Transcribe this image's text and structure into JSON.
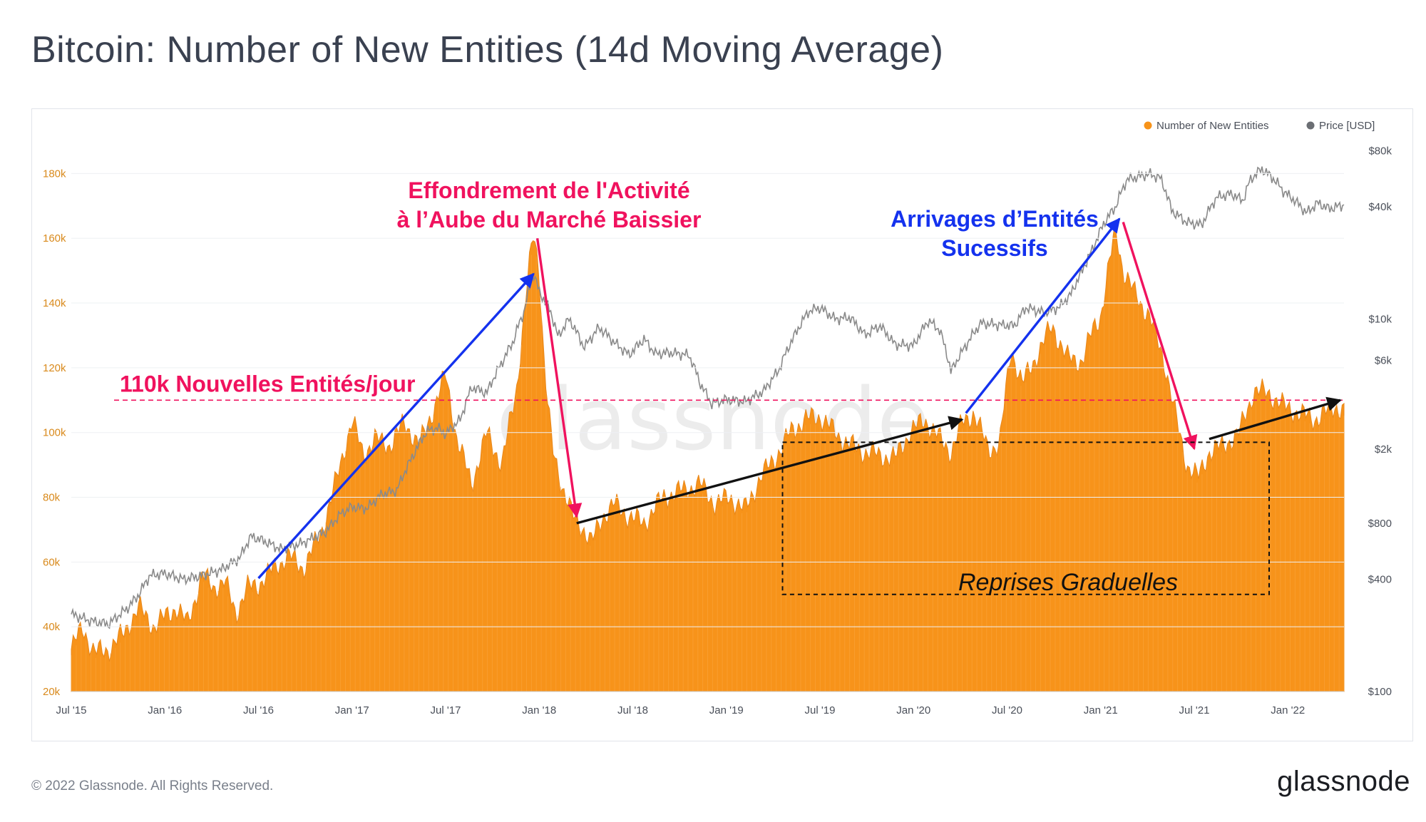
{
  "title": "Bitcoin: Number of New Entities (14d Moving Average)",
  "footer": "© 2022 Glassnode. All Rights Reserved.",
  "brand": "glassnode",
  "watermark": "glassnode",
  "colors": {
    "entities": "#f7931a",
    "price": "#8a8a8a",
    "red": "#f0125e",
    "blue": "#1432ee",
    "black": "#111111"
  },
  "chart_data": {
    "type": "area",
    "title": "Bitcoin: Number of New Entities (14d Moving Average)",
    "legend": {
      "position": "top-right",
      "items": [
        "Number of New Entities",
        "Price [USD]"
      ]
    },
    "x_range": [
      2015.5,
      2022.3
    ],
    "x_ticks": [
      {
        "label": "Jul '15",
        "t": 2015.5
      },
      {
        "label": "Jan '16",
        "t": 2016.0
      },
      {
        "label": "Jul '16",
        "t": 2016.5
      },
      {
        "label": "Jan '17",
        "t": 2017.0
      },
      {
        "label": "Jul '17",
        "t": 2017.5
      },
      {
        "label": "Jan '18",
        "t": 2018.0
      },
      {
        "label": "Jul '18",
        "t": 2018.5
      },
      {
        "label": "Jan '19",
        "t": 2019.0
      },
      {
        "label": "Jul '19",
        "t": 2019.5
      },
      {
        "label": "Jan '20",
        "t": 2020.0
      },
      {
        "label": "Jul '20",
        "t": 2020.5
      },
      {
        "label": "Jan '21",
        "t": 2021.0
      },
      {
        "label": "Jul '21",
        "t": 2021.5
      },
      {
        "label": "Jan '22",
        "t": 2022.0
      }
    ],
    "y_left": {
      "range": [
        20000,
        190000
      ],
      "ticks": [
        {
          "label": "20k",
          "v": 20000
        },
        {
          "label": "40k",
          "v": 40000
        },
        {
          "label": "60k",
          "v": 60000
        },
        {
          "label": "80k",
          "v": 80000
        },
        {
          "label": "100k",
          "v": 100000
        },
        {
          "label": "120k",
          "v": 120000
        },
        {
          "label": "140k",
          "v": 140000
        },
        {
          "label": "160k",
          "v": 160000
        },
        {
          "label": "180k",
          "v": 180000
        }
      ]
    },
    "y_right": {
      "scale": "log",
      "range": [
        100,
        90000
      ],
      "ticks": [
        {
          "label": "$100",
          "v": 100
        },
        {
          "label": "$400",
          "v": 400
        },
        {
          "label": "$800",
          "v": 800
        },
        {
          "label": "$2k",
          "v": 2000
        },
        {
          "label": "$6k",
          "v": 6000
        },
        {
          "label": "$10k",
          "v": 10000
        },
        {
          "label": "$40k",
          "v": 40000
        },
        {
          "label": "$80k",
          "v": 80000
        }
      ]
    },
    "series": [
      {
        "name": "Number of New Entities",
        "axis": "left",
        "style": "area",
        "points": [
          [
            2015.5,
            33000
          ],
          [
            2015.56,
            40000
          ],
          [
            2015.62,
            32000
          ],
          [
            2015.7,
            33000
          ],
          [
            2015.78,
            38000
          ],
          [
            2015.86,
            46000
          ],
          [
            2015.94,
            40000
          ],
          [
            2016.0,
            43000
          ],
          [
            2016.06,
            46000
          ],
          [
            2016.12,
            41000
          ],
          [
            2016.2,
            56000
          ],
          [
            2016.26,
            52000
          ],
          [
            2016.32,
            54000
          ],
          [
            2016.38,
            44000
          ],
          [
            2016.44,
            52000
          ],
          [
            2016.5,
            53000
          ],
          [
            2016.58,
            58000
          ],
          [
            2016.66,
            62000
          ],
          [
            2016.74,
            58000
          ],
          [
            2016.84,
            70000
          ],
          [
            2016.92,
            86000
          ],
          [
            2017.0,
            104000
          ],
          [
            2017.06,
            93000
          ],
          [
            2017.12,
            98000
          ],
          [
            2017.2,
            96000
          ],
          [
            2017.28,
            103000
          ],
          [
            2017.36,
            96000
          ],
          [
            2017.44,
            108000
          ],
          [
            2017.5,
            118000
          ],
          [
            2017.56,
            98000
          ],
          [
            2017.64,
            84000
          ],
          [
            2017.72,
            100000
          ],
          [
            2017.8,
            90000
          ],
          [
            2017.88,
            114000
          ],
          [
            2017.94,
            148000
          ],
          [
            2017.97,
            162000
          ],
          [
            2018.0,
            150000
          ],
          [
            2018.03,
            118000
          ],
          [
            2018.07,
            95000
          ],
          [
            2018.12,
            84000
          ],
          [
            2018.18,
            74000
          ],
          [
            2018.24,
            70000
          ],
          [
            2018.28,
            66000
          ],
          [
            2018.34,
            74000
          ],
          [
            2018.4,
            78000
          ],
          [
            2018.48,
            74000
          ],
          [
            2018.56,
            72000
          ],
          [
            2018.66,
            80000
          ],
          [
            2018.76,
            82000
          ],
          [
            2018.86,
            84000
          ],
          [
            2018.94,
            78000
          ],
          [
            2019.02,
            80000
          ],
          [
            2019.1,
            76000
          ],
          [
            2019.18,
            86000
          ],
          [
            2019.26,
            92000
          ],
          [
            2019.34,
            100000
          ],
          [
            2019.42,
            104000
          ],
          [
            2019.5,
            105000
          ],
          [
            2019.58,
            100000
          ],
          [
            2019.66,
            96000
          ],
          [
            2019.74,
            94000
          ],
          [
            2019.82,
            93000
          ],
          [
            2019.9,
            92000
          ],
          [
            2019.98,
            100000
          ],
          [
            2020.06,
            104000
          ],
          [
            2020.14,
            98000
          ],
          [
            2020.2,
            94000
          ],
          [
            2020.26,
            103000
          ],
          [
            2020.32,
            106000
          ],
          [
            2020.4,
            95000
          ],
          [
            2020.46,
            96000
          ],
          [
            2020.52,
            126000
          ],
          [
            2020.58,
            115000
          ],
          [
            2020.66,
            124000
          ],
          [
            2020.74,
            133000
          ],
          [
            2020.82,
            123000
          ],
          [
            2020.9,
            122000
          ],
          [
            2020.96,
            132000
          ],
          [
            2021.0,
            136000
          ],
          [
            2021.04,
            150000
          ],
          [
            2021.08,
            163000
          ],
          [
            2021.12,
            150000
          ],
          [
            2021.18,
            143000
          ],
          [
            2021.26,
            136000
          ],
          [
            2021.34,
            122000
          ],
          [
            2021.4,
            105000
          ],
          [
            2021.46,
            90000
          ],
          [
            2021.52,
            86000
          ],
          [
            2021.58,
            94000
          ],
          [
            2021.66,
            96000
          ],
          [
            2021.74,
            100000
          ],
          [
            2021.82,
            113000
          ],
          [
            2021.9,
            112000
          ],
          [
            2021.98,
            108000
          ],
          [
            2022.06,
            106000
          ],
          [
            2022.14,
            104000
          ],
          [
            2022.2,
            106000
          ],
          [
            2022.26,
            108000
          ],
          [
            2022.3,
            107000
          ]
        ]
      },
      {
        "name": "Price [USD]",
        "axis": "right",
        "style": "line",
        "points": [
          [
            2015.5,
            260
          ],
          [
            2015.6,
            240
          ],
          [
            2015.7,
            230
          ],
          [
            2015.8,
            280
          ],
          [
            2015.86,
            330
          ],
          [
            2015.92,
            420
          ],
          [
            2016.0,
            430
          ],
          [
            2016.1,
            400
          ],
          [
            2016.2,
            420
          ],
          [
            2016.3,
            450
          ],
          [
            2016.4,
            520
          ],
          [
            2016.46,
            680
          ],
          [
            2016.52,
            650
          ],
          [
            2016.62,
            580
          ],
          [
            2016.74,
            630
          ],
          [
            2016.86,
            720
          ],
          [
            2016.94,
            900
          ],
          [
            2017.0,
            980
          ],
          [
            2017.08,
            960
          ],
          [
            2017.16,
            1150
          ],
          [
            2017.24,
            1200
          ],
          [
            2017.32,
            1800
          ],
          [
            2017.4,
            2500
          ],
          [
            2017.46,
            2600
          ],
          [
            2017.5,
            2400
          ],
          [
            2017.58,
            2900
          ],
          [
            2017.64,
            4300
          ],
          [
            2017.72,
            4000
          ],
          [
            2017.8,
            5800
          ],
          [
            2017.86,
            7500
          ],
          [
            2017.92,
            11000
          ],
          [
            2017.97,
            17500
          ],
          [
            2018.0,
            14000
          ],
          [
            2018.06,
            11000
          ],
          [
            2018.1,
            8000
          ],
          [
            2018.16,
            10000
          ],
          [
            2018.24,
            7000
          ],
          [
            2018.32,
            9000
          ],
          [
            2018.4,
            7500
          ],
          [
            2018.48,
            6400
          ],
          [
            2018.56,
            7800
          ],
          [
            2018.62,
            6500
          ],
          [
            2018.7,
            6600
          ],
          [
            2018.8,
            6400
          ],
          [
            2018.86,
            4500
          ],
          [
            2018.92,
            3500
          ],
          [
            2019.0,
            3700
          ],
          [
            2019.1,
            3600
          ],
          [
            2019.2,
            4100
          ],
          [
            2019.28,
            5300
          ],
          [
            2019.36,
            8000
          ],
          [
            2019.44,
            11000
          ],
          [
            2019.5,
            11500
          ],
          [
            2019.58,
            10000
          ],
          [
            2019.66,
            10200
          ],
          [
            2019.74,
            8200
          ],
          [
            2019.82,
            9200
          ],
          [
            2019.9,
            7300
          ],
          [
            2020.0,
            7200
          ],
          [
            2020.08,
            9800
          ],
          [
            2020.14,
            8700
          ],
          [
            2020.2,
            5200
          ],
          [
            2020.28,
            7200
          ],
          [
            2020.36,
            9500
          ],
          [
            2020.46,
            9300
          ],
          [
            2020.54,
            9200
          ],
          [
            2020.6,
            11500
          ],
          [
            2020.7,
            10800
          ],
          [
            2020.78,
            11600
          ],
          [
            2020.84,
            13500
          ],
          [
            2020.9,
            18000
          ],
          [
            2020.96,
            24000
          ],
          [
            2021.02,
            33000
          ],
          [
            2021.08,
            40000
          ],
          [
            2021.14,
            56000
          ],
          [
            2021.2,
            58000
          ],
          [
            2021.26,
            60000
          ],
          [
            2021.32,
            57000
          ],
          [
            2021.38,
            38000
          ],
          [
            2021.46,
            33000
          ],
          [
            2021.54,
            32000
          ],
          [
            2021.62,
            45000
          ],
          [
            2021.7,
            47000
          ],
          [
            2021.76,
            43000
          ],
          [
            2021.8,
            56000
          ],
          [
            2021.86,
            64000
          ],
          [
            2021.92,
            57000
          ],
          [
            2021.98,
            48000
          ],
          [
            2022.04,
            43000
          ],
          [
            2022.1,
            37000
          ],
          [
            2022.16,
            42000
          ],
          [
            2022.22,
            39000
          ],
          [
            2022.3,
            41000
          ]
        ]
      }
    ],
    "reference_line": {
      "label": "110k Nouvelles Entités/jour",
      "value": 110000
    },
    "annotations": [
      {
        "text_lines": [
          "Effondrement de l'Activité",
          "à l’Aube du Marché Baissier"
        ],
        "color": "red"
      },
      {
        "text_lines": [
          "Arrivages d’Entités",
          "Sucessifs"
        ],
        "color": "blue"
      },
      {
        "text_lines": [
          "Reprises Graduelles"
        ],
        "color": "black"
      }
    ],
    "arrows": [
      {
        "color": "blue",
        "from": [
          2016.5,
          55000
        ],
        "to": [
          2017.97,
          149000
        ]
      },
      {
        "color": "red",
        "from": [
          2017.99,
          160000
        ],
        "to": [
          2018.2,
          74000
        ]
      },
      {
        "color": "black",
        "from": [
          2018.2,
          72000
        ],
        "to": [
          2020.26,
          104000
        ]
      },
      {
        "color": "blue",
        "from": [
          2020.28,
          106000
        ],
        "to": [
          2021.1,
          166000
        ]
      },
      {
        "color": "red",
        "from": [
          2021.12,
          165000
        ],
        "to": [
          2021.5,
          95000
        ]
      },
      {
        "color": "black",
        "from": [
          2021.58,
          98000
        ],
        "to": [
          2022.28,
          110000
        ]
      }
    ],
    "box": {
      "x_range": [
        2019.3,
        2021.9
      ],
      "y_range": [
        50000,
        97000
      ]
    }
  }
}
